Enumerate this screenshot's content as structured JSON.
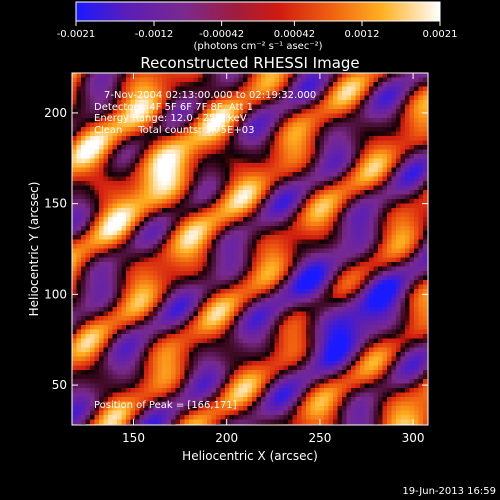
{
  "chart_data": {
    "type": "heatmap",
    "title": "Reconstructed RHESSI Image",
    "xlabel": "Heliocentric X (arcsec)",
    "ylabel": "Heliocentric Y (arcsec)",
    "xlim": [
      117,
      308
    ],
    "ylim": [
      28,
      222
    ],
    "x_ticks": [
      150,
      200,
      250,
      300
    ],
    "y_ticks": [
      50,
      100,
      150,
      200
    ],
    "colorbar": {
      "min": -0.0021,
      "max": 0.0021,
      "ticks": [
        "-0.0021",
        "-0.0012",
        "-0.00042",
        "0.00042",
        "0.0012",
        "0.0021"
      ],
      "tick_values": [
        -0.0021,
        -0.0012,
        -0.00042,
        0.00042,
        0.0012,
        0.0021
      ],
      "unit_label": "(photons cm⁻² s⁻¹ asec⁻²)",
      "colormap": [
        "#1010ff",
        "#5a1eb0",
        "#7a2890",
        "#b01c1c",
        "#e84a10",
        "#ffa000",
        "#fff080",
        "#ffffff"
      ]
    },
    "info_lines": [
      "7-Nov-2004 02:13:00.000 to 02:19:32.000",
      "Detectors: 4F 5F 6F 7F 8F, Att 1",
      "Energy Range: 12.0 - 25.0 keV",
      "Clean     Total counts: 3.75E+03"
    ],
    "peak_label": "Position of Peak = [166,171]",
    "peak_position": [
      166,
      171
    ],
    "grid": false
  },
  "footer": {
    "date": "19-Jun-2013 16:59"
  }
}
